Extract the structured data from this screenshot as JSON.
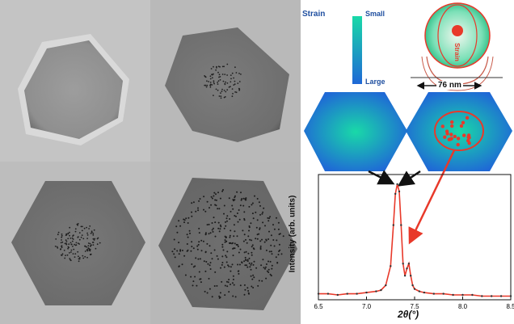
{
  "tem_panels": [
    {
      "name": "tem-panel-top-left"
    },
    {
      "name": "tem-panel-top-right"
    },
    {
      "name": "tem-panel-bottom-left"
    },
    {
      "name": "tem-panel-bottom-right"
    }
  ],
  "legend": {
    "title": "Strain",
    "high_label": "Small",
    "low_label": "Large",
    "color_small": "#19d9a8",
    "color_large": "#1f68d6"
  },
  "particle_sketch": {
    "inner_label": "Strain",
    "size_label": "76 nm",
    "accent_color": "#e8392a"
  },
  "chart_data": {
    "type": "line",
    "xlabel": "2θ(°)",
    "ylabel": "Intensity (arb. units)",
    "xlim": [
      6.5,
      8.5
    ],
    "xticks": [
      "6.5",
      "7.0",
      "7.5",
      "8.0",
      "8.5"
    ],
    "ylim": [
      0,
      1
    ],
    "series": [
      {
        "color": "#e8392a",
        "x": [
          6.5,
          6.6,
          6.7,
          6.8,
          6.9,
          7.0,
          7.1,
          7.15,
          7.2,
          7.25,
          7.28,
          7.3,
          7.32,
          7.34,
          7.36,
          7.38,
          7.4,
          7.42,
          7.44,
          7.46,
          7.48,
          7.5,
          7.55,
          7.6,
          7.7,
          7.8,
          7.9,
          8.0,
          8.1,
          8.2,
          8.3,
          8.4,
          8.5
        ],
        "y": [
          0.05,
          0.05,
          0.04,
          0.05,
          0.05,
          0.06,
          0.07,
          0.08,
          0.12,
          0.28,
          0.62,
          0.88,
          0.96,
          0.9,
          0.62,
          0.3,
          0.2,
          0.26,
          0.3,
          0.2,
          0.12,
          0.09,
          0.07,
          0.06,
          0.05,
          0.05,
          0.04,
          0.04,
          0.04,
          0.03,
          0.03,
          0.03,
          0.03
        ]
      }
    ]
  }
}
